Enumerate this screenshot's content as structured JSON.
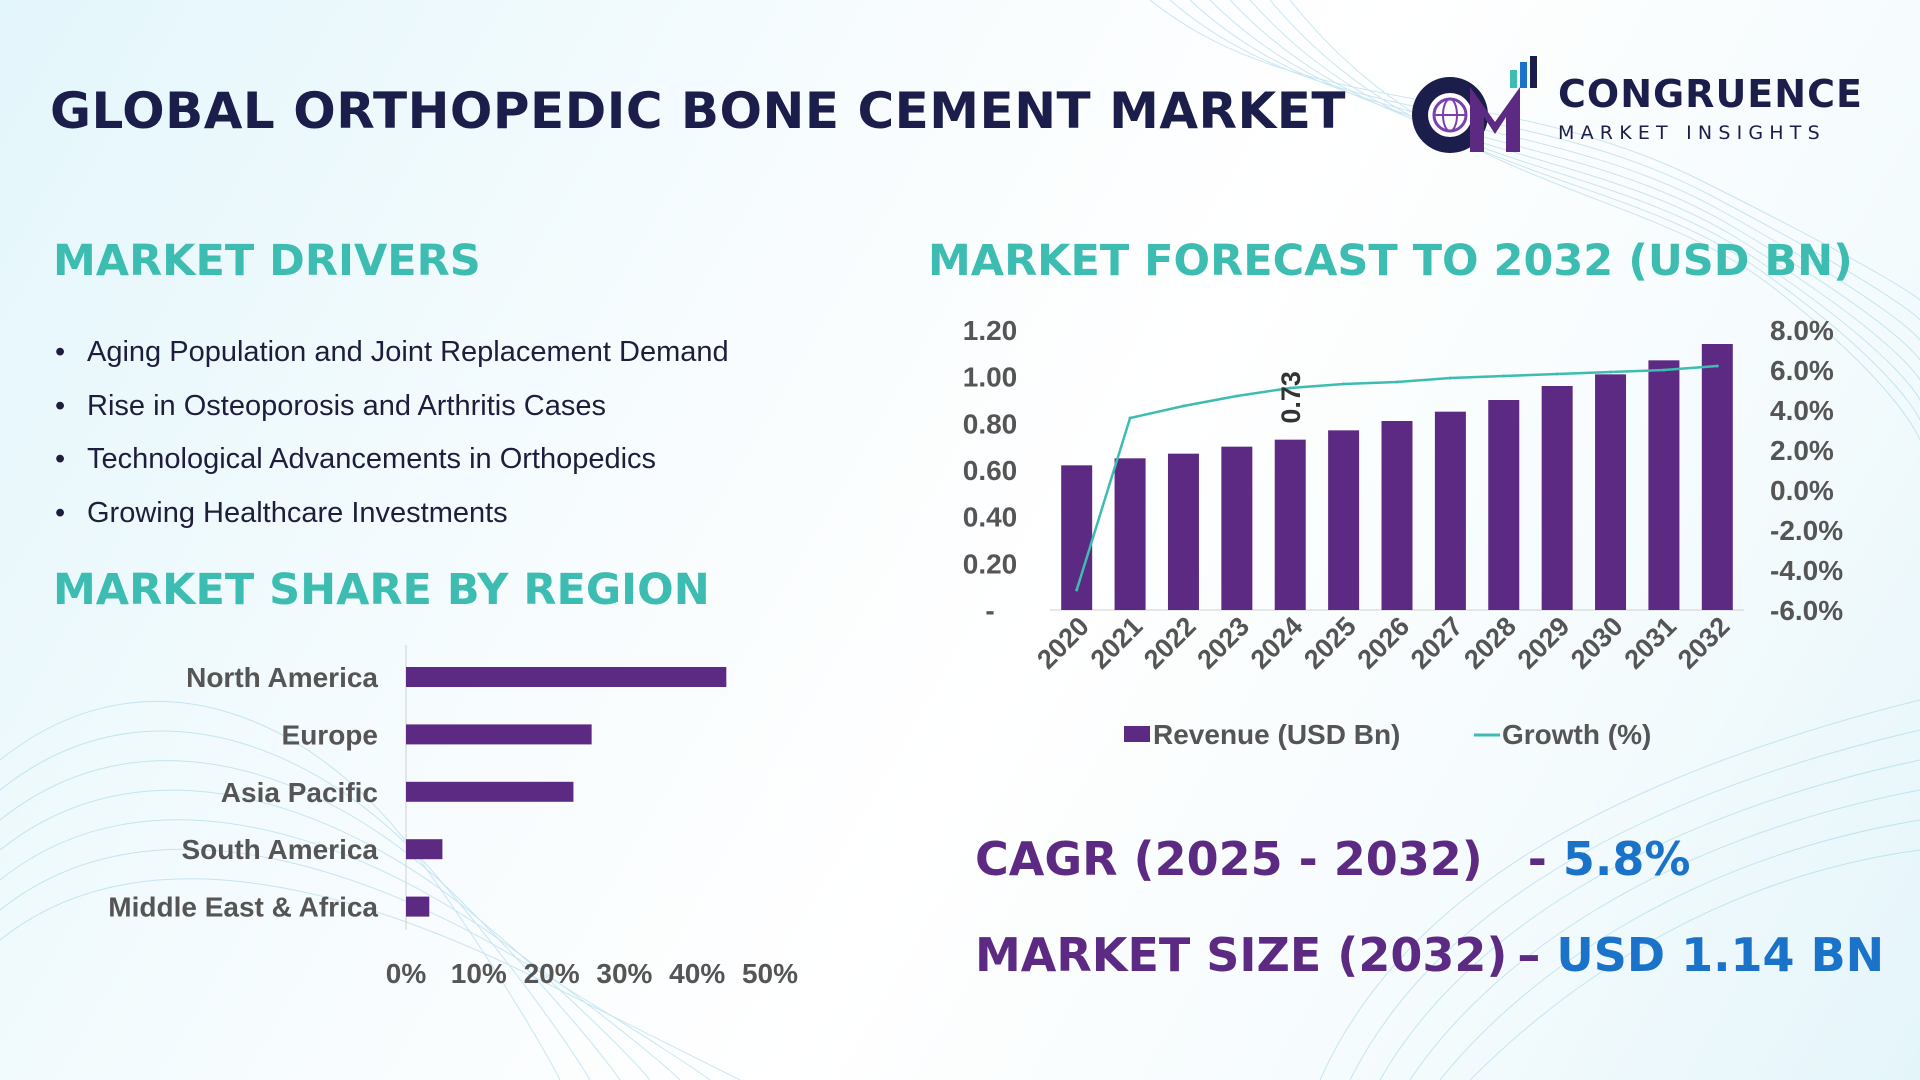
{
  "header": {
    "title": "GLOBAL ORTHOPEDIC BONE CEMENT MARKET",
    "logo": {
      "initials": "CM",
      "name": "CONGRUENCE",
      "tagline": "MARKET INSIGHTS"
    }
  },
  "drivers": {
    "heading": "MARKET DRIVERS",
    "items": [
      "Aging Population and Joint Replacement Demand",
      "Rise in Osteoporosis and Arthritis Cases",
      "Technological Advancements in Orthopedics",
      "Growing Healthcare Investments"
    ]
  },
  "region": {
    "heading": "MARKET SHARE BY REGION"
  },
  "forecast": {
    "heading": "MARKET FORECAST TO 2032 (USD BN)"
  },
  "stats": {
    "cagr_label": "CAGR (2025 - 2032)",
    "cagr_sep": "- ",
    "cagr_value": "5.8%",
    "size_label": "MARKET SIZE (2032)",
    "size_sep": "– ",
    "size_value": "USD 1.14 BN"
  },
  "colors": {
    "bar": "#5c2a83",
    "line": "#3dbcb1",
    "heading": "#3dbcb1",
    "title": "#1b1d4a",
    "stat_value": "#1a73c8"
  },
  "chart_data": [
    {
      "type": "bar",
      "orientation": "horizontal",
      "categories": [
        "North America",
        "Europe",
        "Asia Pacific",
        "South America",
        "Middle East & Africa"
      ],
      "values": [
        44,
        25.5,
        23,
        5,
        3.2
      ],
      "unit": "%",
      "xlim": [
        0,
        50
      ],
      "x_ticks": [
        "0%",
        "10%",
        "20%",
        "30%",
        "40%",
        "50%"
      ],
      "grid": false
    },
    {
      "type": "bar+line",
      "categories": [
        "2020",
        "2021",
        "2022",
        "2023",
        "2024",
        "2025",
        "2026",
        "2027",
        "2028",
        "2029",
        "2030",
        "2031",
        "2032"
      ],
      "series": [
        {
          "name": "Revenue (USD Bn)",
          "type": "bar",
          "axis": "left",
          "values": [
            0.62,
            0.65,
            0.67,
            0.7,
            0.73,
            0.77,
            0.81,
            0.85,
            0.9,
            0.96,
            1.01,
            1.07,
            1.14
          ]
        },
        {
          "name": "Growth (%)",
          "type": "line",
          "axis": "right",
          "values": [
            -5.0,
            3.6,
            4.2,
            4.7,
            5.1,
            5.3,
            5.4,
            5.6,
            5.7,
            5.8,
            5.9,
            6.0,
            6.2
          ]
        }
      ],
      "y_left": {
        "lim": [
          0,
          1.2
        ],
        "ticks": [
          "-",
          "0.20",
          "0.40",
          "0.60",
          "0.80",
          "1.00",
          "1.20"
        ]
      },
      "y_right": {
        "lim": [
          -6,
          8
        ],
        "ticks": [
          "-6.0%",
          "-4.0%",
          "-2.0%",
          "0.0%",
          "2.0%",
          "4.0%",
          "6.0%",
          "8.0%"
        ]
      },
      "annotation": {
        "category": "2024",
        "text": "0.73"
      },
      "legend": "bottom",
      "grid": false
    }
  ]
}
